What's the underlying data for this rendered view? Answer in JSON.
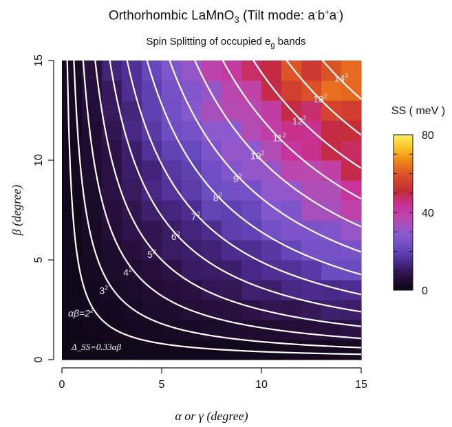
{
  "title": {
    "prefix": "Orthorhombic LaMnO",
    "sub": "3",
    "mid": " (Tilt mode: a",
    "sup1": "-",
    "b": "b",
    "sup2": "+",
    "a": "a",
    "sup3": "-",
    "close": ")"
  },
  "subtitle": {
    "prefix": "Spin Splitting of occupied  e",
    "sub": "g",
    "suffix": " bands"
  },
  "chart_data": {
    "type": "heatmap",
    "xlabel": "α or γ (degree)",
    "ylabel": "β (degree)",
    "xlim": [
      0,
      15
    ],
    "ylim": [
      0,
      15
    ],
    "xticks": [
      "0",
      "5",
      "10",
      "15"
    ],
    "yticks": [
      "0",
      "5",
      "10",
      "15"
    ],
    "grid_size": 15,
    "colorbar": {
      "title": "SS ( meV )",
      "range": [
        0,
        80
      ],
      "ticks": [
        "0",
        "40",
        "80"
      ],
      "colormap": [
        "#0d0716",
        "#2a1040",
        "#4a2a8a",
        "#6a4bc0",
        "#8a5ad0",
        "#b84ab0",
        "#c8329a",
        "#c42a3a",
        "#d84a2a",
        "#ee7a1a",
        "#f8c020",
        "#ffef60"
      ]
    },
    "model": "Δ_SS = 0.33αβ",
    "contours": {
      "levels": [
        4,
        9,
        16,
        25,
        36,
        49,
        64,
        81,
        100,
        121,
        144,
        169,
        196
      ],
      "labels": [
        {
          "base": "αβ=2",
          "exp": "2",
          "at": [
            0.95,
            2.15
          ]
        },
        {
          "base": "3",
          "exp": "2",
          "at": [
            2.1,
            3.3
          ]
        },
        {
          "base": "4",
          "exp": "2",
          "at": [
            3.3,
            4.2
          ]
        },
        {
          "base": "5",
          "exp": "2",
          "at": [
            4.5,
            5.1
          ]
        },
        {
          "base": "6",
          "exp": "2",
          "at": [
            5.7,
            6.0
          ]
        },
        {
          "base": "7",
          "exp": "2",
          "at": [
            6.7,
            7.0
          ]
        },
        {
          "base": "8",
          "exp": "2",
          "at": [
            7.8,
            7.95
          ]
        },
        {
          "base": "9",
          "exp": "2",
          "at": [
            8.8,
            8.9
          ]
        },
        {
          "base": "10",
          "exp": "2",
          "at": [
            9.8,
            10.05
          ]
        },
        {
          "base": "11",
          "exp": "2",
          "at": [
            10.9,
            10.95
          ]
        },
        {
          "base": "12",
          "exp": "2",
          "at": [
            11.9,
            11.8
          ]
        },
        {
          "base": "13",
          "exp": "2",
          "at": [
            12.95,
            12.9
          ]
        },
        {
          "base": "14",
          "exp": "2",
          "at": [
            14.0,
            13.95
          ]
        }
      ]
    },
    "annotation": "Δ_SS=0.33αβ"
  }
}
